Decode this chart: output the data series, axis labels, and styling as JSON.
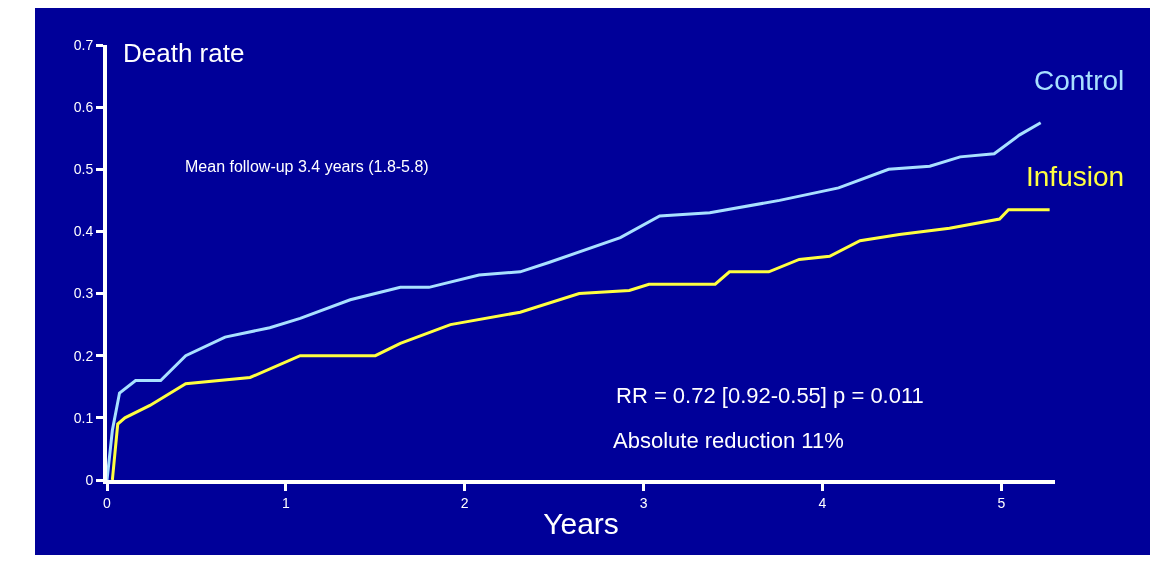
{
  "chart_data": {
    "type": "line",
    "xlabel": "Years",
    "ylabel": "Death rate",
    "annotations": [
      "Mean follow-up 3.4 years (1.8-5.8)",
      "RR = 0.72 [0.92-0.55] p = 0.011",
      "Absolute reduction 11%"
    ],
    "xlim": [
      0,
      5.3
    ],
    "xticks": [
      0,
      1,
      2,
      3,
      4,
      5
    ],
    "ylim": [
      0,
      0.7
    ],
    "yticks": [
      0,
      0.1,
      0.2,
      0.3,
      0.4,
      0.5,
      0.6,
      0.7
    ],
    "grid": false,
    "legend": false,
    "marker": "none",
    "line_style": "solid",
    "series": [
      {
        "name": "Control",
        "color": "#a8e0ff",
        "x": [
          0,
          0.03,
          0.07,
          0.16,
          0.3,
          0.44,
          0.66,
          0.91,
          1.08,
          1.36,
          1.64,
          1.8,
          2.08,
          2.31,
          2.47,
          2.87,
          3.09,
          3.37,
          3.76,
          4.09,
          4.37,
          4.6,
          4.77,
          4.96,
          5.1,
          5.22
        ],
        "values": [
          0,
          0.08,
          0.14,
          0.16,
          0.16,
          0.2,
          0.23,
          0.245,
          0.26,
          0.29,
          0.31,
          0.31,
          0.33,
          0.335,
          0.35,
          0.39,
          0.425,
          0.43,
          0.45,
          0.47,
          0.5,
          0.505,
          0.52,
          0.525,
          0.555,
          0.575
        ]
      },
      {
        "name": "Infusion",
        "color": "#ffff40",
        "x": [
          0.03,
          0.06,
          0.1,
          0.24,
          0.44,
          0.8,
          1.08,
          1.5,
          1.64,
          1.92,
          2.31,
          2.64,
          2.92,
          3.03,
          3.4,
          3.48,
          3.7,
          3.87,
          4.04,
          4.21,
          4.43,
          4.71,
          4.99,
          5.04,
          5.27
        ],
        "values": [
          0,
          0.09,
          0.1,
          0.12,
          0.155,
          0.165,
          0.2,
          0.2,
          0.22,
          0.25,
          0.27,
          0.3,
          0.305,
          0.315,
          0.315,
          0.335,
          0.335,
          0.355,
          0.36,
          0.385,
          0.395,
          0.405,
          0.42,
          0.435,
          0.435
        ]
      }
    ]
  }
}
